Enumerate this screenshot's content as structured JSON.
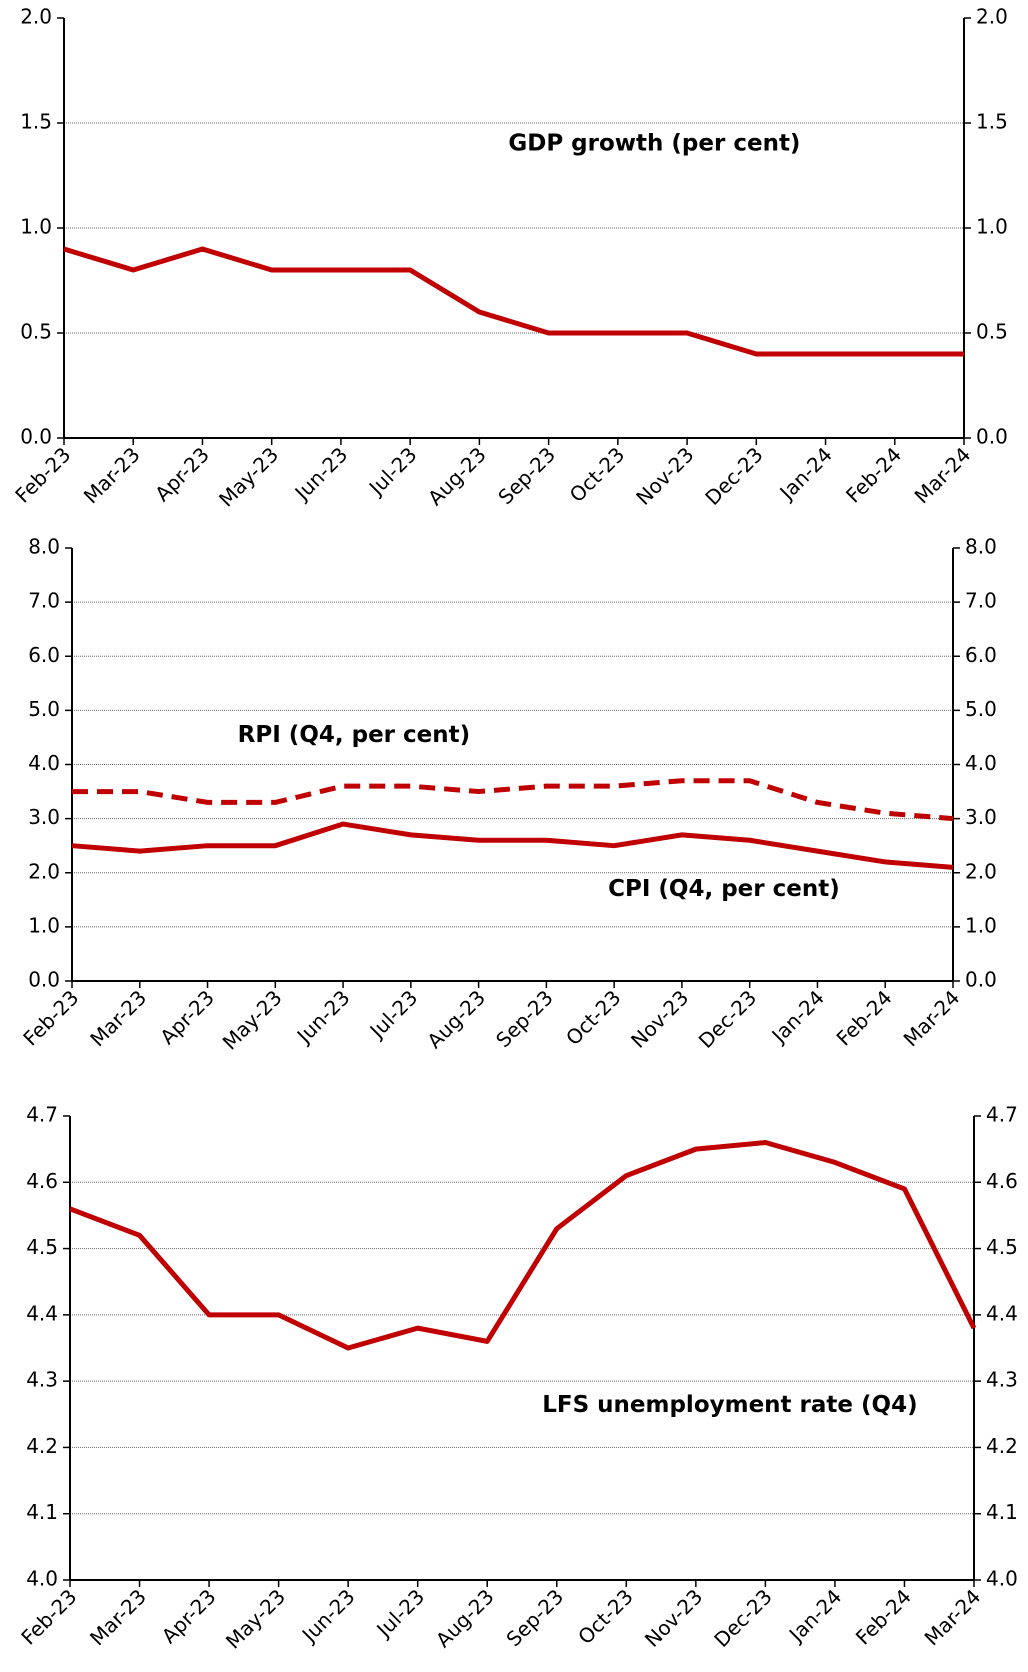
{
  "chart_data": [
    {
      "type": "line",
      "categories": [
        "Feb-23",
        "Mar-23",
        "Apr-23",
        "May-23",
        "Jun-23",
        "Jul-23",
        "Aug-23",
        "Sep-23",
        "Oct-23",
        "Nov-23",
        "Dec-23",
        "Jan-24",
        "Feb-24",
        "Mar-24"
      ],
      "series": [
        {
          "name": "GDP growth (per cent)",
          "color": "#c00000",
          "style": "solid",
          "values": [
            0.9,
            0.8,
            0.9,
            0.8,
            0.8,
            0.8,
            0.6,
            0.5,
            0.5,
            0.5,
            0.4,
            0.4,
            0.4,
            0.4
          ]
        }
      ],
      "ylim": [
        0,
        2
      ],
      "yticks": [
        {
          "value": 0,
          "label": "0.0"
        },
        {
          "value": 0.5,
          "label": "0.5"
        },
        {
          "value": 1,
          "label": "1.0"
        },
        {
          "value": 1.5,
          "label": "1.5"
        },
        {
          "value": 2,
          "label": "2.0"
        }
      ],
      "y2lim": [
        0,
        2
      ],
      "y2ticks": [
        {
          "value": 0,
          "label": "0.0"
        },
        {
          "value": 0.5,
          "label": "0.5"
        },
        {
          "value": 1,
          "label": "1.0"
        },
        {
          "value": 1.5,
          "label": "1.5"
        },
        {
          "value": 2,
          "label": "2.0"
        }
      ],
      "grid": true
    },
    {
      "type": "line",
      "categories": [
        "Feb-23",
        "Mar-23",
        "Apr-23",
        "May-23",
        "Jun-23",
        "Jul-23",
        "Aug-23",
        "Sep-23",
        "Oct-23",
        "Nov-23",
        "Dec-23",
        "Jan-24",
        "Feb-24",
        "Mar-24"
      ],
      "series": [
        {
          "name": "RPI (Q4, per cent)",
          "color": "#c00000",
          "style": "dashed",
          "values": [
            3.5,
            3.5,
            3.3,
            3.3,
            3.6,
            3.6,
            3.5,
            3.6,
            3.6,
            3.7,
            3.7,
            3.3,
            3.1,
            3.0
          ]
        },
        {
          "name": "CPI (Q4, per cent)",
          "color": "#c00000",
          "style": "solid",
          "values": [
            2.5,
            2.4,
            2.5,
            2.5,
            2.9,
            2.7,
            2.6,
            2.6,
            2.5,
            2.7,
            2.6,
            2.4,
            2.2,
            2.1
          ]
        }
      ],
      "ylim": [
        0,
        8
      ],
      "yticks": [
        {
          "value": 0,
          "label": "0.0"
        },
        {
          "value": 1,
          "label": "1.0"
        },
        {
          "value": 2,
          "label": "2.0"
        },
        {
          "value": 3,
          "label": "3.0"
        },
        {
          "value": 4,
          "label": "4.0"
        },
        {
          "value": 5,
          "label": "5.0"
        },
        {
          "value": 6,
          "label": "6.0"
        },
        {
          "value": 7,
          "label": "7.0"
        },
        {
          "value": 8,
          "label": "8.0"
        }
      ],
      "y2lim": [
        0,
        8
      ],
      "y2ticks": [
        {
          "value": 0,
          "label": "0.0"
        },
        {
          "value": 1,
          "label": "1.0"
        },
        {
          "value": 2,
          "label": "2.0"
        },
        {
          "value": 3,
          "label": "3.0"
        },
        {
          "value": 4,
          "label": "4.0"
        },
        {
          "value": 5,
          "label": "5.0"
        },
        {
          "value": 6,
          "label": "6.0"
        },
        {
          "value": 7,
          "label": "7.0"
        },
        {
          "value": 8,
          "label": "8.0"
        }
      ],
      "grid": true
    },
    {
      "type": "line",
      "categories": [
        "Feb-23",
        "Mar-23",
        "Apr-23",
        "May-23",
        "Jun-23",
        "Jul-23",
        "Aug-23",
        "Sep-23",
        "Oct-23",
        "Nov-23",
        "Dec-23",
        "Jan-24",
        "Feb-24",
        "Mar-24"
      ],
      "series": [
        {
          "name": "LFS unemployment rate (Q4)",
          "color": "#c00000",
          "style": "solid",
          "values": [
            4.56,
            4.52,
            4.4,
            4.4,
            4.35,
            4.38,
            4.36,
            4.53,
            4.61,
            4.65,
            4.66,
            4.63,
            4.59,
            4.38
          ]
        }
      ],
      "ylim": [
        4,
        4.7
      ],
      "yticks": [
        {
          "value": 4,
          "label": "4.0"
        },
        4.1,
        4.2,
        4.3,
        4.4,
        4.5,
        4.6,
        4.7
      ],
      "y2lim": [
        4,
        4.7
      ],
      "y2ticks": [
        {
          "value": 4,
          "label": "4.0"
        },
        4.1,
        4.2,
        4.3,
        4.4,
        4.5,
        4.6,
        4.7
      ],
      "grid": true
    }
  ]
}
